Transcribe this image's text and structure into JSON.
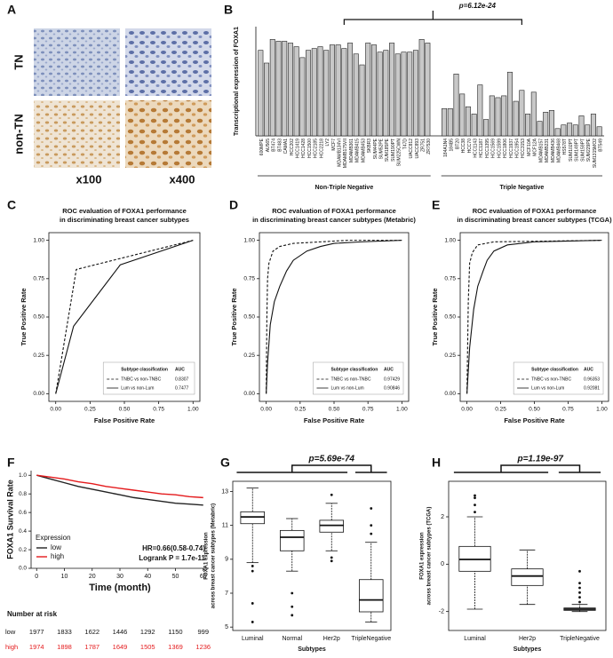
{
  "panel_a": {
    "label": "A",
    "row_labels": [
      "TN",
      "non-TN"
    ],
    "col_labels": [
      "x100",
      "x400"
    ]
  },
  "chart_data": [
    {
      "type": "bar",
      "panel": "B",
      "annotation": "p=6.12e-24",
      "ylabel": "Transcriptional expression of FOXA1",
      "color": "#c8c8c8",
      "ylim": [
        5.5,
        11.5
      ],
      "groups": [
        {
          "name": "Non-Triple Negative",
          "categories": [
            "600MPE",
            "AU565",
            "BT474",
            "BT483",
            "CAMA1",
            "HCC202",
            "HCC1419",
            "HCC1428",
            "HCC1500",
            "HCC2185",
            "HCC2218",
            "LY2",
            "MCF7",
            "MDAMB134VI",
            "MDAMB175VII",
            "MDAMB361",
            "MDAMB415",
            "MDAMB453",
            "SKBR3",
            "SUM44PE",
            "SUM52PE",
            "SUM185PE",
            "SUM190PT",
            "SUM225CWN",
            "T47D",
            "UACC812",
            "UACC893",
            "ZR751",
            "ZR7530"
          ],
          "values": [
            10.2,
            9.5,
            10.8,
            10.7,
            10.7,
            10.6,
            10.4,
            9.8,
            10.2,
            10.3,
            10.4,
            10.2,
            10.5,
            10.5,
            10.3,
            10.6,
            10.0,
            9.4,
            10.6,
            10.5,
            10.1,
            10.2,
            10.6,
            10.0,
            10.1,
            10.1,
            10.2,
            10.8,
            10.6
          ]
        },
        {
          "name": "Triple Negative",
          "categories": [
            "184A1N4",
            "184B5",
            "BT20",
            "HCC38",
            "HCC70",
            "HCC1143",
            "HCC1187",
            "HCC1395",
            "HCC1569",
            "HCC1599",
            "HCC1806",
            "HCC1937",
            "HCC1954",
            "HCC3153",
            "MCF10A",
            "MCF12A",
            "MDAMB157",
            "MDAMB231",
            "MDAMB436",
            "MDAMB468",
            "HS578T",
            "SUM102PT",
            "SUM149PT",
            "SUM159PT",
            "SUM229PE",
            "SUM1315MO2",
            "BT549"
          ],
          "values": [
            7.0,
            7.0,
            8.9,
            7.8,
            7.1,
            6.7,
            8.3,
            6.4,
            7.7,
            7.6,
            7.7,
            9.0,
            7.4,
            8.0,
            6.7,
            7.9,
            6.3,
            6.8,
            6.9,
            5.9,
            6.1,
            6.2,
            6.1,
            6.6,
            6.1,
            6.7,
            6.0
          ]
        }
      ]
    },
    {
      "type": "line",
      "panel": "C",
      "title": [
        "ROC evaluation of FOXA1 performance",
        "in discriminating breast cancer subtypes"
      ],
      "xlabel": "False Positive Rate",
      "ylabel": "True  Positive Rate",
      "legend_title": [
        "Subtype classification",
        "AUC"
      ],
      "xlim": [
        -0.05,
        1.05
      ],
      "ylim": [
        -0.05,
        1.05
      ],
      "xticks": [
        {
          "value": 0,
          "label": "0.00"
        },
        0.25,
        {
          "value": 0.5,
          "label": "0.50"
        },
        0.75,
        {
          "value": 1,
          "label": "1.00"
        }
      ],
      "yticks": [
        {
          "value": 0,
          "label": "0.00"
        },
        0.25,
        {
          "value": 0.5,
          "label": "0.50"
        },
        0.75,
        {
          "value": 1,
          "label": "1.00"
        }
      ],
      "series": [
        {
          "name": "TNBC vs non-TNBC",
          "auc": 0.8307,
          "dashed": true,
          "color": "#111111",
          "x": [
            0,
            0.15,
            1
          ],
          "values": [
            0,
            0.81,
            1
          ]
        },
        {
          "name": "Lum vs non-Lum",
          "auc": 0.7477,
          "dashed": false,
          "color": "#111111",
          "x": [
            0,
            0.13,
            0.47,
            1
          ],
          "values": [
            0,
            0.44,
            0.84,
            1
          ]
        }
      ]
    },
    {
      "type": "line",
      "panel": "D",
      "title": [
        "ROC evaluation of FOXA1 performance",
        "in discriminating breast cancer subtypes (Metabric)"
      ],
      "xlabel": "False Positive Rate",
      "ylabel": "True  Positive Rate",
      "legend_title": [
        "Subtype classification",
        "AUC"
      ],
      "xlim": [
        -0.05,
        1.05
      ],
      "ylim": [
        -0.05,
        1.05
      ],
      "xticks": [
        {
          "value": 0,
          "label": "0.00"
        },
        0.25,
        {
          "value": 0.5,
          "label": "0.50"
        },
        0.75,
        {
          "value": 1,
          "label": "1.00"
        }
      ],
      "yticks": [
        {
          "value": 0,
          "label": "0.00"
        },
        0.25,
        {
          "value": 0.5,
          "label": "0.50"
        },
        0.75,
        {
          "value": 1,
          "label": "1.00"
        }
      ],
      "series": [
        {
          "name": "TNBC vs non-TNBC",
          "auc": 0.97429,
          "dashed": true,
          "color": "#111111",
          "x": [
            0,
            0.005,
            0.01,
            0.02,
            0.05,
            0.1,
            0.2,
            0.4,
            0.6,
            1
          ],
          "values": [
            0,
            0.5,
            0.75,
            0.85,
            0.93,
            0.96,
            0.98,
            0.99,
            1,
            1
          ]
        },
        {
          "name": "Lum vs non-Lum",
          "auc": 0.90846,
          "dashed": false,
          "color": "#111111",
          "x": [
            0,
            0.01,
            0.03,
            0.06,
            0.1,
            0.15,
            0.2,
            0.3,
            0.4,
            0.5,
            0.7,
            1
          ],
          "values": [
            0,
            0.2,
            0.45,
            0.6,
            0.7,
            0.8,
            0.87,
            0.93,
            0.96,
            0.98,
            0.99,
            1
          ]
        }
      ]
    },
    {
      "type": "line",
      "panel": "E",
      "title": [
        "ROC evaluation of FOXA1 performance",
        "in discriminating breast cancer subtypes (TCGA)"
      ],
      "xlabel": "False Positive Rate",
      "ylabel": "True  Positive Rate",
      "legend_title": [
        "Subtype classification",
        "AUC"
      ],
      "xlim": [
        -0.05,
        1.05
      ],
      "ylim": [
        -0.05,
        1.05
      ],
      "xticks": [
        {
          "value": 0,
          "label": "0.00"
        },
        0.25,
        {
          "value": 0.5,
          "label": "0.50"
        },
        0.75,
        {
          "value": 1,
          "label": "1.00"
        }
      ],
      "yticks": [
        {
          "value": 0,
          "label": "0.00"
        },
        0.25,
        {
          "value": 0.5,
          "label": "0.50"
        },
        0.75,
        {
          "value": 1,
          "label": "1.00"
        }
      ],
      "series": [
        {
          "name": "TNBC vs non-TNBC",
          "auc": 0.96353,
          "dashed": true,
          "color": "#111111",
          "x": [
            0,
            0.01,
            0.02,
            0.04,
            0.08,
            0.2,
            1
          ],
          "values": [
            0,
            0.6,
            0.85,
            0.92,
            0.97,
            0.99,
            1
          ]
        },
        {
          "name": "Lum vs non-Lum",
          "auc": 0.92081,
          "dashed": false,
          "color": "#111111",
          "x": [
            0,
            0.02,
            0.05,
            0.08,
            0.12,
            0.15,
            0.2,
            0.3,
            0.5,
            1
          ],
          "values": [
            0,
            0.3,
            0.55,
            0.7,
            0.8,
            0.87,
            0.93,
            0.97,
            0.99,
            1
          ]
        }
      ]
    },
    {
      "type": "survival",
      "panel": "F",
      "xlabel": "Time (month)",
      "ylabel": "FOXA1 Survival Rate",
      "legend_title": "Expression",
      "annotations": [
        "HR=0.66(0.58-0.74)",
        "Logrank P = 1.7e-11"
      ],
      "xlim": [
        -2,
        62
      ],
      "ylim": [
        0,
        1.05
      ],
      "xticks": [
        0,
        10,
        20,
        30,
        40,
        50,
        60
      ],
      "yticks": [
        {
          "value": 0,
          "label": "0.0"
        },
        0.2,
        0.4,
        0.6,
        0.8,
        {
          "value": 1,
          "label": "1.0"
        }
      ],
      "series": [
        {
          "name": "low",
          "color": "#222222",
          "x": [
            0,
            5,
            10,
            15,
            20,
            25,
            30,
            35,
            40,
            45,
            50,
            55,
            60
          ],
          "values": [
            1,
            0.96,
            0.92,
            0.88,
            0.85,
            0.82,
            0.79,
            0.76,
            0.74,
            0.72,
            0.7,
            0.69,
            0.68
          ]
        },
        {
          "name": "high",
          "color": "#e41a1c",
          "x": [
            0,
            5,
            10,
            15,
            20,
            25,
            30,
            35,
            40,
            45,
            50,
            55,
            60
          ],
          "values": [
            1,
            0.98,
            0.96,
            0.93,
            0.91,
            0.88,
            0.86,
            0.84,
            0.82,
            0.8,
            0.79,
            0.77,
            0.76
          ]
        }
      ],
      "at_risk": {
        "title": "Number at risk",
        "rows": [
          {
            "name": "low",
            "color": "#111111",
            "values": [
              1977,
              1833,
              1622,
              1446,
              1292,
              1150,
              999
            ]
          },
          {
            "name": "high",
            "color": "#e41a1c",
            "values": [
              1974,
              1898,
              1787,
              1649,
              1505,
              1369,
              1236
            ]
          }
        ]
      }
    },
    {
      "type": "box",
      "panel": "G",
      "annotation": "p=5.69e-74",
      "xlabel": "Subtypes",
      "ylabel": [
        "FOXA1 expression",
        "across breast cancer subtypes (Metabric)"
      ],
      "ylim": [
        4.8,
        13.6
      ],
      "yticks": [
        5,
        7,
        9,
        11,
        13
      ],
      "categories": [
        "Luminal",
        "Normal",
        "Her2p",
        "TripleNegative"
      ],
      "boxes": [
        {
          "low": 8.8,
          "q1": 11.1,
          "median": 11.5,
          "q3": 11.8,
          "high": 13.2,
          "outliers": [
            8.6,
            8.3,
            6.4,
            5.3
          ]
        },
        {
          "low": 8.3,
          "q1": 9.5,
          "median": 10.3,
          "q3": 10.7,
          "high": 11.4,
          "outliers": [
            7.0,
            6.2,
            5.7
          ]
        },
        {
          "low": 9.5,
          "q1": 10.6,
          "median": 11.0,
          "q3": 11.3,
          "high": 12.3,
          "outliers": [
            12.8,
            9.1,
            8.9
          ]
        },
        {
          "low": 5.3,
          "q1": 5.9,
          "median": 6.6,
          "q3": 7.8,
          "high": 10.0,
          "outliers": [
            10.5,
            11.0,
            12.0
          ]
        }
      ]
    },
    {
      "type": "box",
      "panel": "H",
      "annotation": "p=1.19e-97",
      "xlabel": "Subtypes",
      "ylabel": [
        "FOXA1 expression",
        "across breast cancer subtypes (TCGA)"
      ],
      "ylim": [
        -2.8,
        3.5
      ],
      "yticks": [
        -2,
        0,
        2
      ],
      "categories": [
        "Luminal",
        "Her2p",
        "TripleNegative"
      ],
      "boxes": [
        {
          "low": -1.9,
          "q1": -0.3,
          "median": 0.2,
          "q3": 0.75,
          "high": 2.0,
          "outliers": [
            2.2,
            2.5,
            2.8,
            2.9
          ]
        },
        {
          "low": -1.7,
          "q1": -0.9,
          "median": -0.5,
          "q3": -0.2,
          "high": 0.6,
          "outliers": []
        },
        {
          "low": -2.0,
          "q1": -1.95,
          "median": -1.9,
          "q3": -1.85,
          "high": -1.7,
          "outliers": [
            -1.6,
            -1.4,
            -1.2,
            -1.0,
            -0.8,
            -0.3
          ]
        }
      ]
    }
  ]
}
